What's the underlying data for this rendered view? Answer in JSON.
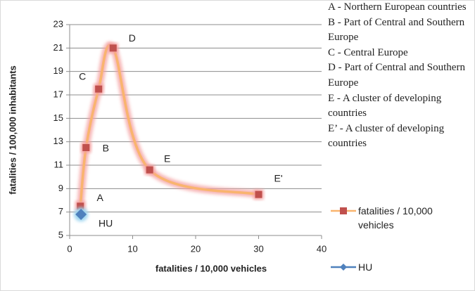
{
  "chart_data": {
    "type": "scatter",
    "xlabel": "fatalities / 10,000 vehicles",
    "ylabel": "fatalities / 100,000 inhabitants",
    "xlim": [
      0,
      40
    ],
    "xticks": [
      0,
      10,
      20,
      30,
      40
    ],
    "ylim": [
      5,
      23
    ],
    "yticks": [
      5,
      7,
      9,
      11,
      13,
      15,
      17,
      19,
      21,
      23
    ],
    "grid": true,
    "series": [
      {
        "name": "fatalities / 10,000 vehicles",
        "color": "#c0504d",
        "line_color": "#f9b46e",
        "x": [
          1.7,
          2.6,
          4.6,
          6.9,
          12.7,
          30
        ],
        "values": [
          7.5,
          12.5,
          17.5,
          21,
          10.6,
          8.5
        ],
        "labels": [
          "A",
          "B",
          "C",
          "D",
          "E",
          "E'"
        ]
      },
      {
        "name": "HU",
        "color": "#4f81bd",
        "x": [
          1.8
        ],
        "values": [
          6.8
        ],
        "labels": [
          "HU"
        ]
      }
    ],
    "notes": [
      "A - Northern European countries",
      "B - Part of Central and Southern Europe",
      "C - Central Europe",
      "D - Part of Central and Southern Europe",
      "E - A cluster of developing countries",
      "E’ - A cluster of developing countries"
    ]
  }
}
